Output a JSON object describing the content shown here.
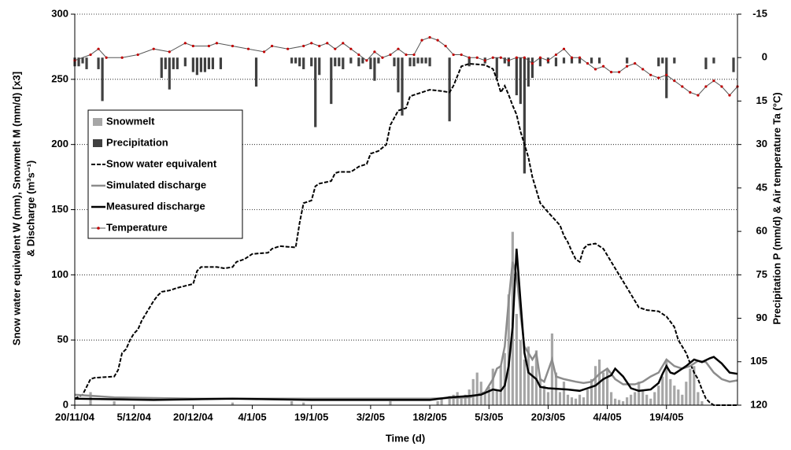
{
  "chart_data": {
    "type": "combo",
    "x_label": "Time (d)",
    "y_label": [
      "Snow water equivalent W (mm), Snowmelt M (mm/d)  [x3]",
      "& Discharge (m³s⁻¹)"
    ],
    "y2_label": "Precipitation P (mm/d) & Air temperature Ta  (°C)",
    "xlim": [
      0,
      168
    ],
    "xticks": [
      {
        "value": 0,
        "label": "20/11/04"
      },
      {
        "value": 15,
        "label": "5/12/04"
      },
      {
        "value": 30,
        "label": "20/12/04"
      },
      {
        "value": 45,
        "label": "4/1/05"
      },
      {
        "value": 60,
        "label": "19/1/05"
      },
      {
        "value": 75,
        "label": "3/2/05"
      },
      {
        "value": 90,
        "label": "18/2/05"
      },
      {
        "value": 105,
        "label": "5/3/05"
      },
      {
        "value": 120,
        "label": "20/3/05"
      },
      {
        "value": 135,
        "label": "4/4/05"
      },
      {
        "value": 150,
        "label": "19/4/05"
      }
    ],
    "ylim": [
      0,
      300
    ],
    "yticks": [
      0,
      50,
      100,
      150,
      200,
      250,
      300
    ],
    "y2lim": [
      120,
      -15
    ],
    "y2ticks": [
      120,
      105,
      90,
      75,
      60,
      45,
      30,
      15,
      0,
      -15
    ],
    "grid": true,
    "legend": "center left",
    "series": [
      {
        "name": "Snowmelt",
        "type": "bar",
        "color": "#a6a6a6",
        "x": [
          4,
          10,
          40,
          55,
          58,
          80,
          92,
          93,
          95,
          96,
          97,
          98,
          99,
          100,
          101,
          102,
          103,
          104,
          105,
          106,
          107,
          108,
          109,
          110,
          111,
          112,
          113,
          114,
          115,
          116,
          117,
          118,
          119,
          120,
          121,
          122,
          123,
          124,
          125,
          126,
          127,
          128,
          129,
          130,
          131,
          132,
          133,
          134,
          135,
          136,
          137,
          138,
          139,
          140,
          141,
          142,
          143,
          144,
          145,
          146,
          147,
          148,
          149,
          150,
          151,
          152,
          153,
          154,
          155,
          156,
          157,
          158,
          159
        ],
        "values": [
          10,
          3,
          2,
          3,
          2,
          3,
          3,
          5,
          7,
          8,
          10,
          5,
          8,
          12,
          20,
          25,
          18,
          10,
          14,
          28,
          12,
          30,
          40,
          85,
          133,
          70,
          50,
          35,
          45,
          30,
          42,
          20,
          15,
          10,
          55,
          25,
          10,
          18,
          8,
          6,
          5,
          8,
          6,
          12,
          20,
          30,
          35,
          25,
          28,
          10,
          5,
          4,
          3,
          6,
          8,
          10,
          18,
          12,
          8,
          5,
          10,
          15,
          22,
          35,
          20,
          15,
          12,
          8,
          18,
          28,
          30,
          10,
          3
        ]
      },
      {
        "name": "Precipitation",
        "type": "bar",
        "axis": "y2",
        "color": "#404040",
        "x": [
          0,
          1,
          2,
          3,
          6,
          7,
          22,
          23,
          24,
          25,
          26,
          28,
          30,
          31,
          32,
          33,
          34,
          35,
          37,
          46,
          55,
          56,
          57,
          58,
          60,
          61,
          62,
          65,
          66,
          67,
          68,
          70,
          72,
          73,
          75,
          76,
          77,
          81,
          82,
          83,
          85,
          86,
          87,
          88,
          89,
          90,
          95,
          100,
          104,
          107,
          109,
          110,
          112,
          113,
          114,
          115,
          116,
          118,
          120,
          122,
          124,
          126,
          128,
          131,
          133,
          140,
          148,
          149,
          150,
          152,
          160,
          162,
          167
        ],
        "values": [
          3,
          3,
          2,
          4,
          4,
          15,
          7,
          4,
          11,
          4,
          4,
          3,
          5,
          6,
          5,
          5,
          4,
          4,
          4,
          10,
          2,
          2,
          3,
          4,
          3,
          24,
          6,
          16,
          3,
          3,
          4,
          2,
          3,
          2,
          4,
          8,
          2,
          3,
          12,
          20,
          3,
          3,
          2,
          2,
          2,
          3,
          22,
          3,
          2,
          7,
          2,
          3,
          13,
          16,
          40,
          10,
          7,
          3,
          2,
          3,
          2,
          2,
          2,
          2,
          2,
          2,
          3,
          2,
          14,
          2,
          4,
          2,
          5
        ]
      },
      {
        "name": "Snow water equivalent",
        "type": "line",
        "color": "#000000",
        "dash": true,
        "x": [
          0,
          2,
          3,
          4,
          5,
          10,
          11,
          12,
          13,
          14,
          15,
          16,
          17,
          18,
          19,
          20,
          21,
          22,
          24,
          26,
          30,
          31,
          32,
          36,
          38,
          40,
          41,
          43,
          45,
          49,
          50,
          52,
          56,
          57,
          58,
          60,
          61,
          62,
          65,
          66,
          67,
          70,
          72,
          74,
          75,
          77,
          79,
          80,
          82,
          84,
          85,
          86,
          88,
          90,
          93,
          95,
          96,
          98,
          100,
          104,
          106,
          107,
          108,
          109,
          110,
          111,
          112,
          113,
          114,
          115,
          116,
          117,
          118,
          120,
          123,
          124,
          125,
          126,
          127,
          128,
          129,
          130,
          132,
          134,
          136,
          138,
          140,
          142,
          143,
          145,
          148,
          150,
          152,
          153,
          155,
          156,
          157,
          158,
          159,
          160,
          161,
          162,
          168
        ],
        "values": [
          5,
          8,
          14,
          20,
          21,
          22,
          27,
          40,
          43,
          50,
          55,
          58,
          65,
          70,
          75,
          80,
          84,
          87,
          88,
          90,
          93,
          103,
          106,
          106,
          105,
          106,
          110,
          112,
          116,
          117,
          120,
          122,
          121,
          140,
          155,
          157,
          168,
          170,
          172,
          178,
          179,
          179,
          183,
          185,
          193,
          195,
          200,
          215,
          226,
          228,
          237,
          238,
          240,
          242,
          241,
          240,
          245,
          260,
          262,
          261,
          258,
          250,
          240,
          245,
          238,
          230,
          223,
          210,
          200,
          190,
          175,
          165,
          155,
          148,
          138,
          130,
          125,
          118,
          112,
          110,
          120,
          123,
          124,
          120,
          110,
          100,
          90,
          80,
          75,
          73,
          72,
          68,
          60,
          50,
          40,
          32,
          25,
          20,
          12,
          5,
          2,
          0,
          0
        ]
      },
      {
        "name": "Simulated discharge",
        "type": "line",
        "color": "#8c8c8c",
        "x": [
          0,
          10,
          30,
          60,
          90,
          100,
          104,
          106,
          107,
          108,
          109,
          110,
          111,
          112,
          113,
          114,
          115,
          116,
          117,
          118,
          119,
          121,
          122,
          124,
          127,
          129,
          131,
          133,
          135,
          137,
          139,
          142,
          144,
          146,
          148,
          150,
          152,
          154,
          156,
          158,
          160,
          162,
          164,
          166,
          168
        ],
        "values": [
          8,
          6,
          5,
          5,
          5,
          6,
          10,
          20,
          28,
          30,
          45,
          80,
          110,
          100,
          70,
          45,
          40,
          35,
          40,
          20,
          18,
          35,
          22,
          20,
          18,
          17,
          18,
          24,
          28,
          20,
          16,
          16,
          18,
          22,
          25,
          35,
          30,
          28,
          30,
          34,
          33,
          25,
          20,
          18,
          19
        ]
      },
      {
        "name": "Measured discharge",
        "type": "line",
        "color": "#000000",
        "x": [
          0,
          20,
          40,
          60,
          80,
          90,
          95,
          100,
          103,
          106,
          108,
          109,
          110,
          111,
          112,
          113,
          114,
          115,
          117,
          118,
          120,
          125,
          128,
          130,
          132,
          134,
          136,
          137,
          139,
          141,
          143,
          146,
          148,
          149,
          150,
          151,
          152,
          155,
          157,
          159,
          161,
          162,
          164,
          166,
          168
        ],
        "values": [
          5,
          4,
          5,
          4,
          4,
          4,
          6,
          7,
          8,
          12,
          11,
          15,
          30,
          60,
          120,
          80,
          40,
          25,
          20,
          14,
          13,
          12,
          11,
          13,
          15,
          20,
          23,
          28,
          22,
          13,
          11,
          12,
          17,
          24,
          30,
          25,
          24,
          30,
          35,
          33,
          36,
          37,
          32,
          25,
          24
        ]
      },
      {
        "name": "Temperature",
        "type": "line",
        "axis": "y2",
        "color": "#c00000",
        "markers": true,
        "x": [
          0,
          4,
          6,
          8,
          12,
          16,
          20,
          24,
          28,
          30,
          34,
          36,
          40,
          44,
          48,
          50,
          54,
          58,
          60,
          62,
          64,
          66,
          68,
          70,
          72,
          74,
          76,
          78,
          80,
          82,
          84,
          86,
          88,
          90,
          92,
          94,
          96,
          98,
          100,
          102,
          104,
          106,
          108,
          110,
          112,
          114,
          116,
          118,
          120,
          122,
          124,
          126,
          128,
          130,
          132,
          134,
          136,
          138,
          140,
          142,
          144,
          146,
          148,
          150,
          152,
          154,
          156,
          158,
          160,
          162,
          164,
          166,
          168
        ],
        "values": [
          1,
          -1,
          -3,
          0,
          0,
          -1,
          -3,
          -2,
          -5,
          -4,
          -4,
          -5,
          -4,
          -3,
          -2,
          -4,
          -3,
          -4,
          -5,
          -4,
          -5,
          -3,
          -5,
          -3,
          -1,
          1,
          -2,
          0,
          -1,
          -3,
          -1,
          -1,
          -6,
          -7,
          -6,
          -4,
          -1,
          -1,
          0,
          0,
          1,
          0,
          0,
          1,
          0,
          0,
          2,
          0,
          1,
          -1,
          -3,
          0,
          0,
          2,
          4,
          3,
          5,
          5,
          3,
          2,
          4,
          6,
          7,
          6,
          8,
          10,
          12,
          13,
          10,
          8,
          10,
          13,
          10
        ]
      }
    ]
  }
}
